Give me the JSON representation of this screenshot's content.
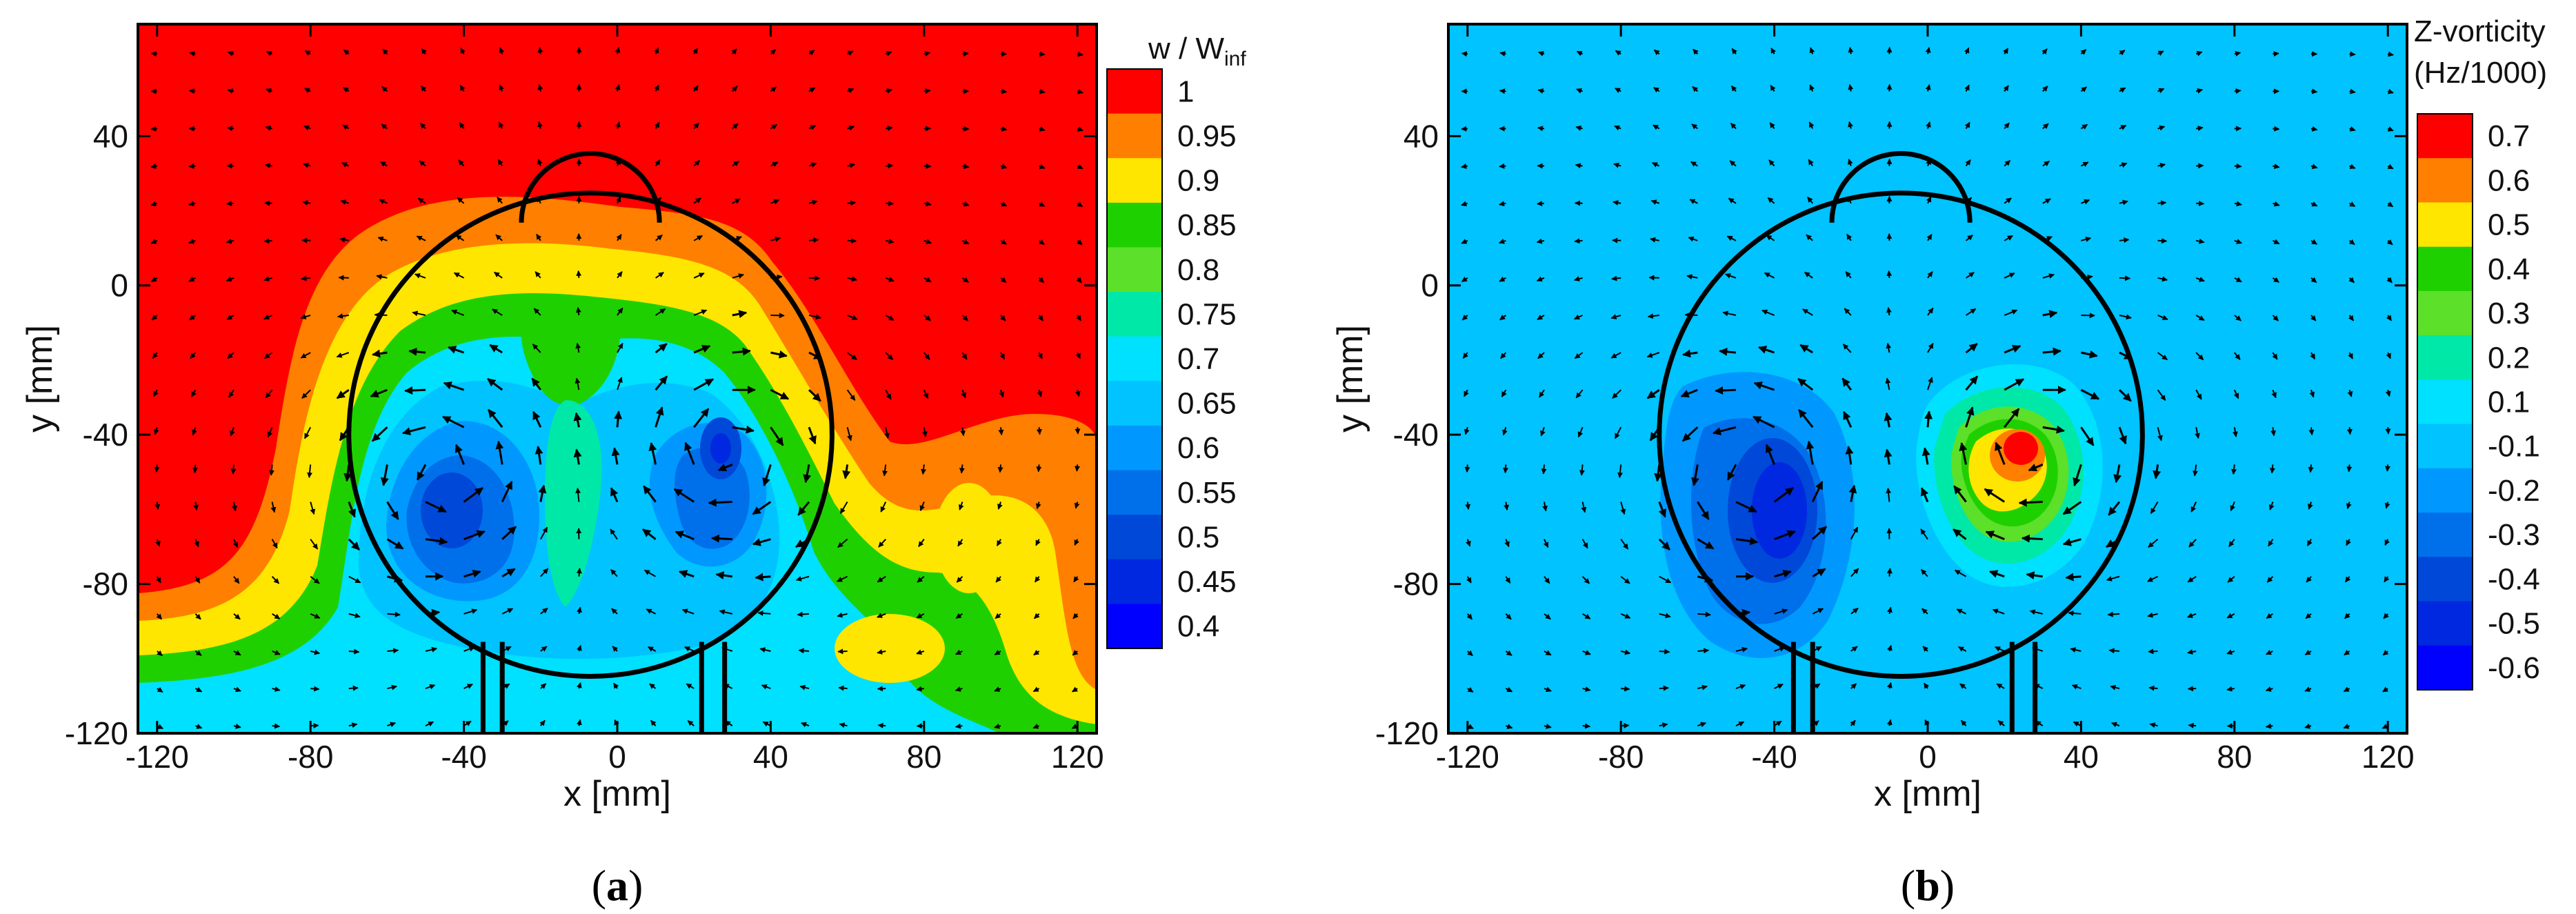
{
  "chart_data": [
    {
      "type": "contour",
      "panel_label": "a",
      "xlabel": "x [mm]",
      "ylabel": "y [mm]",
      "xlim": [
        -125,
        125
      ],
      "ylim": [
        -120,
        70
      ],
      "xticks": [
        -120,
        -80,
        -40,
        0,
        40,
        80,
        120
      ],
      "yticks": [
        -120,
        -80,
        -40,
        0,
        40
      ],
      "colorbar": {
        "title_main": "w / W",
        "title_sub": "inf",
        "levels": [
          1,
          0.95,
          0.9,
          0.85,
          0.8,
          0.75,
          0.7,
          0.65,
          0.6,
          0.55,
          0.5,
          0.45,
          0.4
        ],
        "colors": [
          "#ff0000",
          "#ff7f00",
          "#ffe600",
          "#1fd000",
          "#5ce02a",
          "#00e8a8",
          "#00e0ff",
          "#00c3ff",
          "#0098ff",
          "#0070ea",
          "#0048d8",
          "#0028e0",
          "#0000ff"
        ]
      },
      "field": "Mean axial velocity w/W_inf: freestream value 1 outside wake; velocity deficit region below the body with two minima (~0.5) near x=-45,y=-55 and x=28,y=-45; wake extends to bottom of window for x between -125 and 125 at lower levels",
      "body": {
        "circle_center": [
          -7,
          -40
        ],
        "circle_radius": 63,
        "top_cap_center": [
          -7,
          27
        ],
        "top_cap_radius": 18,
        "legs_x": [
          [
            -35,
            -30
          ],
          [
            22,
            28
          ]
        ]
      }
    },
    {
      "type": "contour",
      "panel_label": "b",
      "xlabel": "x [mm]",
      "ylabel": "y [mm]",
      "xlim": [
        -125,
        125
      ],
      "ylim": [
        -120,
        70
      ],
      "xticks": [
        -120,
        -80,
        -40,
        0,
        40,
        80,
        120
      ],
      "yticks": [
        -120,
        -80,
        -40,
        0,
        40
      ],
      "colorbar": {
        "title_main": "Z-vorticity",
        "title_sub": "(Hz/1000)",
        "levels": [
          0.7,
          0.6,
          0.5,
          0.4,
          0.3,
          0.2,
          0.1,
          -0.1,
          -0.2,
          -0.3,
          -0.4,
          -0.5,
          -0.6
        ],
        "colors": [
          "#ff0000",
          "#ff7f00",
          "#ffe600",
          "#1fd000",
          "#5ce02a",
          "#00e8a8",
          "#00e0ff",
          "#00c3ff",
          "#0098ff",
          "#0070ea",
          "#0048d8",
          "#0028e0",
          "#0000ff"
        ]
      },
      "field": "Z-vorticity: near zero (-0.1..0.1) background; negative vortex minimum ~-0.6 near x=-35,y=-55; positive vortex maximum ~0.7 near x=27,y=-40",
      "body": {
        "circle_center": [
          -7,
          -40
        ],
        "circle_radius": 63,
        "top_cap_center": [
          -7,
          27
        ],
        "top_cap_radius": 18,
        "legs_x": [
          [
            -35,
            -30
          ],
          [
            22,
            28
          ]
        ]
      }
    }
  ]
}
